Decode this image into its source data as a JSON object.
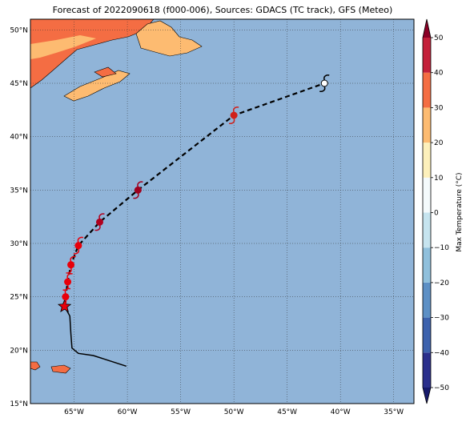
{
  "title": "Forecast of 2022090618 (f000-006), Sources: GDACS (TC track), GFS (Meteo)",
  "map": {
    "lonlim": [
      -69.1,
      -33.1
    ],
    "latlim": [
      15,
      51
    ],
    "lonticks": [
      {
        "value": -65,
        "label": "65°W"
      },
      {
        "value": -60,
        "label": "60°W"
      },
      {
        "value": -55,
        "label": "55°W"
      },
      {
        "value": -50,
        "label": "50°W"
      },
      {
        "value": -45,
        "label": "45°W"
      },
      {
        "value": -40,
        "label": "40°W"
      },
      {
        "value": -35,
        "label": "35°W"
      }
    ],
    "latticks": [
      {
        "value": 15,
        "label": "15°N"
      },
      {
        "value": 20,
        "label": "20°N"
      },
      {
        "value": 25,
        "label": "25°N"
      },
      {
        "value": 30,
        "label": "30°N"
      },
      {
        "value": 35,
        "label": "35°N"
      },
      {
        "value": 40,
        "label": "40°N"
      },
      {
        "value": 45,
        "label": "45°N"
      },
      {
        "value": 50,
        "label": "50°N"
      }
    ],
    "past_track": {
      "lon": [
        -65.9,
        -65.4,
        -65.3,
        -65.2,
        -64.6,
        -63.2,
        -60.1
      ],
      "lat": [
        24.1,
        23.2,
        21.5,
        20.2,
        19.7,
        19.5,
        18.5
      ]
    },
    "forecast_track": {
      "lon": [
        -65.9,
        -65.8,
        -65.6,
        -65.3,
        -64.6,
        -62.6,
        -59.0,
        -50.0,
        -41.5
      ],
      "lat": [
        24.1,
        25.0,
        26.4,
        28.0,
        29.8,
        32.0,
        35.0,
        42.0,
        45.0
      ],
      "colors": [
        "#e8000b",
        "#e8000b",
        "#e8000b",
        "#e8000b",
        "#e8000b",
        "#b0001e",
        "#a0001e",
        "#d0201a",
        "#ffffff"
      ]
    }
  },
  "colorbar": {
    "label": "Max Temperature (°C)",
    "lim": [
      -50,
      50
    ],
    "ticks": [
      {
        "value": 50,
        "label": "50"
      },
      {
        "value": 40,
        "label": "40"
      },
      {
        "value": 30,
        "label": "30"
      },
      {
        "value": 20,
        "label": "20"
      },
      {
        "value": 10,
        "label": "10"
      },
      {
        "value": 0,
        "label": "0"
      },
      {
        "value": -10,
        "label": "−10"
      },
      {
        "value": -20,
        "label": "−20"
      },
      {
        "value": -30,
        "label": "−30"
      },
      {
        "value": -40,
        "label": "−40"
      },
      {
        "value": -50,
        "label": "−50"
      }
    ],
    "colors": [
      "#2b2f8c",
      "#3d62ad",
      "#5d90c5",
      "#90c0dc",
      "#c6e4ef",
      "#f4fafc",
      "#fdf0bb",
      "#fdbb71",
      "#f46d43",
      "#c4203a"
    ],
    "over": "#8a0026",
    "under": "#171a6b"
  }
}
